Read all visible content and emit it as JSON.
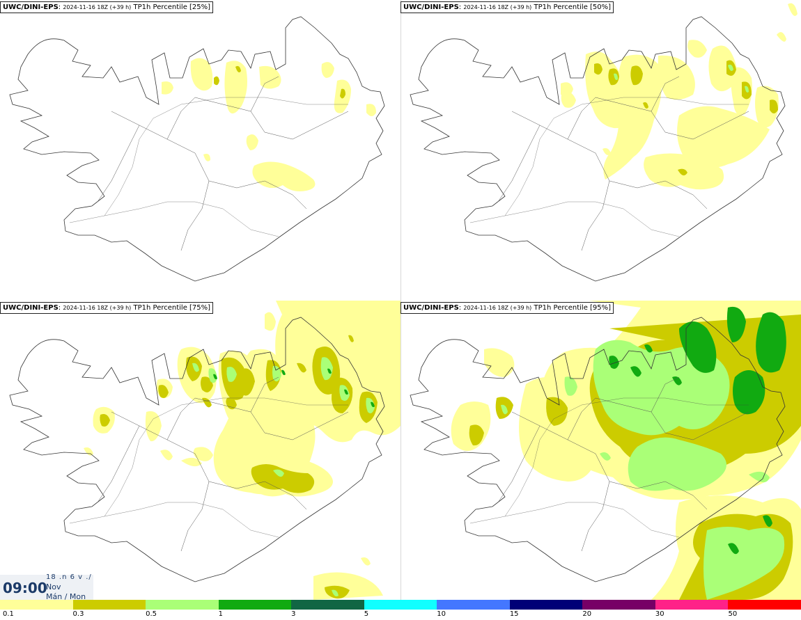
{
  "panels": [
    {
      "source": "UWC/DINI-EPS",
      "run": "2024-11-16 18Z (+39 h)",
      "product": "TP1h Percentile [25%]"
    },
    {
      "source": "UWC/DINI-EPS",
      "run": "2024-11-16 18Z (+39 h)",
      "product": "TP1h Percentile [50%]"
    },
    {
      "source": "UWC/DINI-EPS",
      "run": "2024-11-16 18Z (+39 h)",
      "product": "TP1h Percentile [75%]"
    },
    {
      "source": "UWC/DINI-EPS",
      "run": "2024-11-16 18Z (+39 h)",
      "product": "TP1h Percentile [95%]"
    }
  ],
  "valid_time": {
    "clock": "09:00",
    "day": "18 .n 6 v ./",
    "month": "Nov",
    "weekday": "Mán / Mon"
  },
  "legend": {
    "colors": [
      "#ffff99",
      "#cccc00",
      "#aaff77",
      "#11aa11",
      "#116644",
      "#11ffff",
      "#4477ff",
      "#000077",
      "#770066",
      "#ff2288",
      "#ff0000"
    ],
    "labels": [
      "0.1",
      "0.3",
      "0.5",
      "1",
      "3",
      "5",
      "10",
      "15",
      "20",
      "30",
      "50"
    ]
  },
  "colors": {
    "land_outline": "#333333",
    "background": "#ffffff"
  }
}
